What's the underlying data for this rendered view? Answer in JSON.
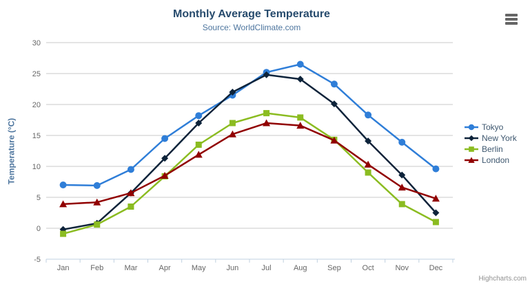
{
  "title": "Monthly Average Temperature",
  "subtitle": "Source: WorldClimate.com",
  "credits": "Highcharts.com",
  "context_menu_icon": "hamburger-icon",
  "colors": {
    "title": "#274b6d",
    "subtitle": "#4d759e",
    "axis_labels": "#666666",
    "axis_line": "#c0d0e0",
    "gridline": "#c8c8c8",
    "legend_text": "#3e576f",
    "credits_text": "#909090"
  },
  "chart_data": {
    "type": "line",
    "title": "Monthly Average Temperature",
    "subtitle": "Source: WorldClimate.com",
    "categories": [
      "Jan",
      "Feb",
      "Mar",
      "Apr",
      "May",
      "Jun",
      "Jul",
      "Aug",
      "Sep",
      "Oct",
      "Nov",
      "Dec"
    ],
    "series": [
      {
        "name": "Tokyo",
        "color": "#2f7ed8",
        "marker": "circle",
        "values": [
          7.0,
          6.9,
          9.5,
          14.5,
          18.2,
          21.5,
          25.2,
          26.5,
          23.3,
          18.3,
          13.9,
          9.6
        ]
      },
      {
        "name": "New York",
        "color": "#0d233a",
        "marker": "diamond",
        "values": [
          -0.2,
          0.8,
          5.7,
          11.3,
          17.0,
          22.0,
          24.8,
          24.1,
          20.1,
          14.1,
          8.6,
          2.5
        ]
      },
      {
        "name": "Berlin",
        "color": "#8bbc21",
        "marker": "square",
        "values": [
          -0.9,
          0.6,
          3.5,
          8.4,
          13.5,
          17.0,
          18.6,
          17.9,
          14.3,
          9.0,
          3.9,
          1.0
        ]
      },
      {
        "name": "London",
        "color": "#910000",
        "marker": "triangle",
        "values": [
          3.9,
          4.2,
          5.7,
          8.5,
          11.9,
          15.2,
          17.0,
          16.6,
          14.2,
          10.3,
          6.6,
          4.8
        ]
      }
    ],
    "xlabel": "",
    "ylabel": "Temperature (°C)",
    "ylim": [
      -5,
      30
    ],
    "yticks": [
      -5,
      0,
      5,
      10,
      15,
      20,
      25,
      30
    ],
    "grid": "horizontal",
    "legend_position": "right"
  }
}
